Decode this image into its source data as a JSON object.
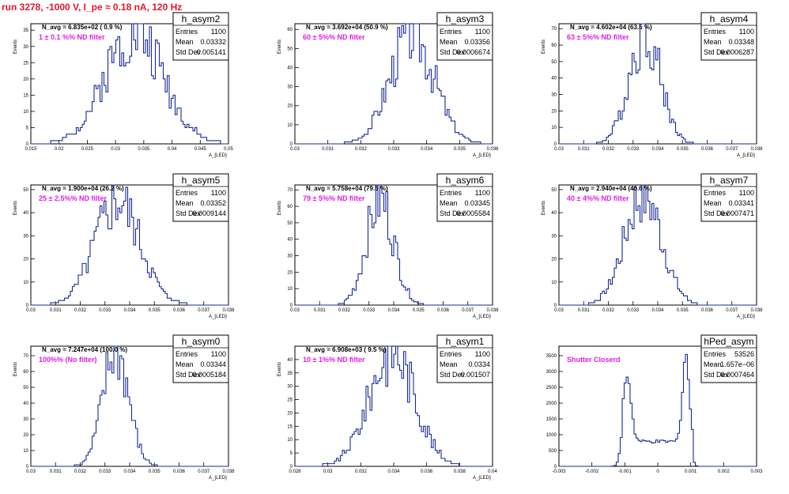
{
  "page": {
    "title": "run 3278, -1000 V, I_pe ≈ 0.18 nA, 120 Hz"
  },
  "chart_data": [
    {
      "type": "histogram",
      "name": "h_asym2",
      "n_avg_text": "N_avg = 6.835e+02 ( 0.9 %)",
      "filter_text": "1 ± 0.1 %% ND filter",
      "xlabel": "A_{LED}",
      "ylabel": "Events",
      "xlim": [
        0.015,
        0.05
      ],
      "ylim": [
        0,
        37
      ],
      "xticks": [
        "0.015",
        "0.02",
        "0.025",
        "0.03",
        "0.035",
        "0.04",
        "0.045",
        "0.05"
      ],
      "yticks": [
        "0",
        "5",
        "10",
        "15",
        "20",
        "25",
        "30",
        "35"
      ],
      "stats": {
        "Entries": "1100",
        "Mean": "0.03332",
        "Std Dev": "0.005141"
      },
      "mean": 0.03332,
      "sigma": 0.005141,
      "entries": 1100,
      "peak": 35,
      "shape": "gauss",
      "seed": 2
    },
    {
      "type": "histogram",
      "name": "h_asym3",
      "n_avg_text": "N_avg = 3.692e+04 (50.9 %)",
      "filter_text": "60 ± 5%% ND filter",
      "xlabel": "A_{LED}",
      "ylabel": "Events",
      "xlim": [
        0.03,
        0.036
      ],
      "ylim": [
        0,
        63
      ],
      "xticks": [
        "0.03",
        "0.031",
        "0.032",
        "0.033",
        "0.034",
        "0.035",
        "0.036",
        "0.037",
        "0.038"
      ],
      "ticks_extended": true,
      "yticks": [
        "0",
        "10",
        "20",
        "30",
        "40",
        "50",
        "60"
      ],
      "stats": {
        "Entries": "1100",
        "Mean": "0.03356",
        "Std Dev": "0.0006674"
      },
      "mean": 0.03356,
      "sigma": 0.0006674,
      "entries": 1100,
      "peak": 58,
      "shape": "gauss",
      "seed": 3
    },
    {
      "type": "histogram",
      "name": "h_asym4",
      "n_avg_text": "N_avg = 4.602e+04 (63.5 %)",
      "filter_text": "63 ± 5%% ND filter",
      "xlabel": "A_{LED}",
      "ylabel": "Events",
      "xlim": [
        0.03,
        0.038
      ],
      "ylim": [
        0,
        73
      ],
      "xticks": [
        "0.03",
        "0.031",
        "0.032",
        "0.033",
        "0.034",
        "0.035",
        "0.036",
        "0.037",
        "0.038"
      ],
      "yticks": [
        "0",
        "10",
        "20",
        "30",
        "40",
        "50",
        "60",
        "70"
      ],
      "stats": {
        "Entries": "1100",
        "Mean": "0.03348",
        "Std Dev": "0.0006287"
      },
      "mean": 0.03348,
      "sigma": 0.0006287,
      "entries": 1100,
      "peak": 68,
      "shape": "gauss",
      "seed": 4
    },
    {
      "type": "histogram",
      "name": "h_asym5",
      "n_avg_text": "N_avg = 1.900e+04 (26.2 %)",
      "filter_text": "25 ± 2.5%% ND filter",
      "xlabel": "A_{LED}",
      "ylabel": "Events",
      "xlim": [
        0.03,
        0.038
      ],
      "ylim": [
        0,
        52
      ],
      "xticks": [
        "0.03",
        "0.031",
        "0.032",
        "0.033",
        "0.034",
        "0.035",
        "0.036",
        "0.037",
        "0.038"
      ],
      "yticks": [
        "0",
        "10",
        "20",
        "30",
        "40",
        "50"
      ],
      "stats": {
        "Entries": "1100",
        "Mean": "0.03352",
        "Std Dev": "0.0009144"
      },
      "mean": 0.03352,
      "sigma": 0.0009144,
      "entries": 1100,
      "peak": 45,
      "shape": "gauss",
      "seed": 5
    },
    {
      "type": "histogram",
      "name": "h_asym6",
      "n_avg_text": "N_avg = 5.758e+04 (79.5 %)",
      "filter_text": "79 ± 5%% ND filter",
      "xlabel": "A_{LED}",
      "ylabel": "Events",
      "xlim": [
        0.03,
        0.038
      ],
      "ylim": [
        0,
        73
      ],
      "xticks": [
        "0.03",
        "0.031",
        "0.032",
        "0.033",
        "0.034",
        "0.035",
        "0.036",
        "0.037",
        "0.038"
      ],
      "yticks": [
        "0",
        "10",
        "20",
        "30",
        "40",
        "50",
        "60",
        "70"
      ],
      "stats": {
        "Entries": "1100",
        "Mean": "0.03345",
        "Std Dev": "0.0005584"
      },
      "mean": 0.03345,
      "sigma": 0.0005584,
      "entries": 1100,
      "peak": 64,
      "shape": "gauss",
      "seed": 6
    },
    {
      "type": "histogram",
      "name": "h_asym7",
      "n_avg_text": "N_avg = 2.940e+04 (40.6 %)",
      "filter_text": "40 ± 4%% ND filter",
      "xlabel": "A_{LED}",
      "ylabel": "Events",
      "xlim": [
        0.03,
        0.038
      ],
      "ylim": [
        0,
        52
      ],
      "xticks": [
        "0.03",
        "0.031",
        "0.032",
        "0.033",
        "0.034",
        "0.035",
        "0.036",
        "0.037",
        "0.038"
      ],
      "yticks": [
        "0",
        "10",
        "20",
        "30",
        "40",
        "50"
      ],
      "stats": {
        "Entries": "1100",
        "Mean": "0.03341",
        "Std Dev": "0.0007471"
      },
      "mean": 0.03341,
      "sigma": 0.0007471,
      "entries": 1100,
      "peak": 48,
      "shape": "gauss",
      "seed": 7
    },
    {
      "type": "histogram",
      "name": "h_asym0",
      "n_avg_text": "N_avg = 7.247e+04 (100.0 %)",
      "filter_text": "100%% (No filter)",
      "xlabel": "A_{LED}",
      "ylabel": "Events",
      "xlim": [
        0.03,
        0.038
      ],
      "ylim": [
        0,
        76
      ],
      "xticks": [
        "0.03",
        "0.031",
        "0.032",
        "0.033",
        "0.034",
        "0.035",
        "0.036",
        "0.037",
        "0.038"
      ],
      "yticks": [
        "0",
        "10",
        "20",
        "30",
        "40",
        "50",
        "60",
        "70"
      ],
      "stats": {
        "Entries": "1100",
        "Mean": "0.03344",
        "Std Dev": "0.0005184"
      },
      "mean": 0.03344,
      "sigma": 0.0005184,
      "entries": 1100,
      "peak": 73,
      "shape": "gauss",
      "seed": 8
    },
    {
      "type": "histogram",
      "name": "h_asym1",
      "n_avg_text": "N_avg = 6.908e+03 ( 9.5 %)",
      "filter_text": "10 ± 1%% ND filter",
      "xlabel": "A_{LED}",
      "ylabel": "Events",
      "xlim": [
        0.027,
        0.04
      ],
      "ylim": [
        0,
        45
      ],
      "xticks": [
        "0.028",
        "0.03",
        "0.032",
        "0.034",
        "0.036",
        "0.038",
        "0.04"
      ],
      "yticks": [
        "0",
        "5",
        "10",
        "15",
        "20",
        "25",
        "30",
        "35",
        "40"
      ],
      "stats": {
        "Entries": "1100",
        "Mean": "0.0334",
        "Std Dev": "0.001507"
      },
      "mean": 0.0334,
      "sigma": 0.001507,
      "entries": 1100,
      "peak": 43,
      "shape": "gauss",
      "seed": 9
    },
    {
      "type": "histogram",
      "name": "hPed_asym",
      "n_avg_text": "",
      "filter_text": "Shutter Closerd",
      "xlabel": "",
      "ylabel": "",
      "xlim": [
        -0.003,
        0.003
      ],
      "ylim": [
        0,
        3800
      ],
      "xticks": [
        "-0.003",
        "-0.002",
        "-0.001",
        "0",
        "0.001",
        "0.002",
        "0.003"
      ],
      "yticks": [
        "0",
        "500",
        "1000",
        "1500",
        "2000",
        "2500",
        "3000",
        "3500"
      ],
      "stats": {
        "Entries": "53526",
        "Mean": "1.657e−06",
        "Std Dev": "0.0007464"
      },
      "mean": 1.7e-06,
      "sigma": 0.0007464,
      "entries": 53526,
      "peak": 3550,
      "shape": "ped",
      "seed": 10
    }
  ]
}
